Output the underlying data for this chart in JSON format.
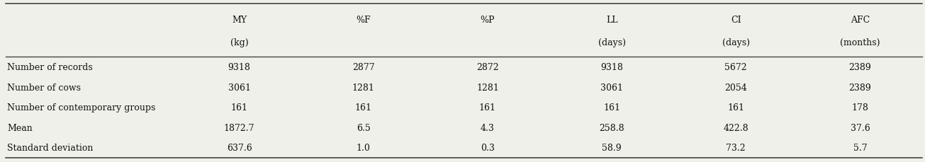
{
  "col_headers_line1": [
    "MY",
    "%F",
    "%P",
    "LL",
    "CI",
    "AFC"
  ],
  "col_headers_line2": [
    "(kg)",
    "",
    "",
    "(days)",
    "(days)",
    "(months)"
  ],
  "row_labels": [
    "Number of records",
    "Number of cows",
    "Number of contemporary groups",
    "Mean",
    "Standard deviation"
  ],
  "table_data": [
    [
      "9318",
      "2877",
      "2872",
      "9318",
      "5672",
      "2389"
    ],
    [
      "3061",
      "1281",
      "1281",
      "3061",
      "2054",
      "2389"
    ],
    [
      "161",
      "161",
      "161",
      "161",
      "161",
      "178"
    ],
    [
      "1872.7",
      "6.5",
      "4.3",
      "258.8",
      "422.8",
      "37.6"
    ],
    [
      "637.6",
      "1.0",
      "0.3",
      "58.9",
      "73.2",
      "5.7"
    ]
  ],
  "bg_color": "#f0f0ea",
  "text_color": "#111111",
  "line_color": "#444444",
  "font_size": 9.0,
  "header_font_size": 9.0,
  "fig_width": 13.05,
  "fig_height": 2.3,
  "dpi": 100
}
